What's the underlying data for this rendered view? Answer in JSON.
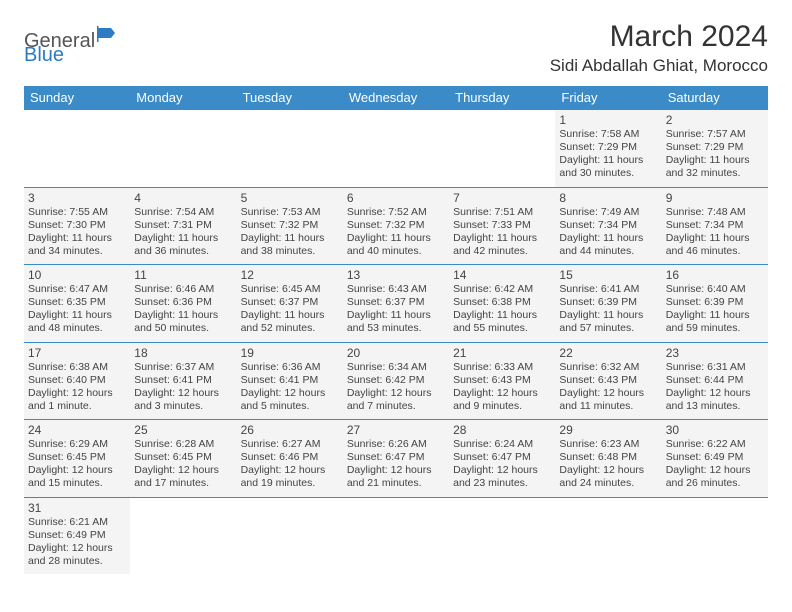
{
  "logo": {
    "text1": "General",
    "text2": "Blue"
  },
  "title": "March 2024",
  "location": "Sidi Abdallah Ghiat, Morocco",
  "colors": {
    "header_bg": "#3b8bc8",
    "header_fg": "#ffffff",
    "cell_bg": "#f4f4f4",
    "border": "#3b8bc8",
    "logo_blue": "#2d7bc0"
  },
  "day_headers": [
    "Sunday",
    "Monday",
    "Tuesday",
    "Wednesday",
    "Thursday",
    "Friday",
    "Saturday"
  ],
  "weeks": [
    [
      null,
      null,
      null,
      null,
      null,
      {
        "n": "1",
        "sr": "Sunrise: 7:58 AM",
        "ss": "Sunset: 7:29 PM",
        "dl": "Daylight: 11 hours and 30 minutes."
      },
      {
        "n": "2",
        "sr": "Sunrise: 7:57 AM",
        "ss": "Sunset: 7:29 PM",
        "dl": "Daylight: 11 hours and 32 minutes."
      }
    ],
    [
      {
        "n": "3",
        "sr": "Sunrise: 7:55 AM",
        "ss": "Sunset: 7:30 PM",
        "dl": "Daylight: 11 hours and 34 minutes."
      },
      {
        "n": "4",
        "sr": "Sunrise: 7:54 AM",
        "ss": "Sunset: 7:31 PM",
        "dl": "Daylight: 11 hours and 36 minutes."
      },
      {
        "n": "5",
        "sr": "Sunrise: 7:53 AM",
        "ss": "Sunset: 7:32 PM",
        "dl": "Daylight: 11 hours and 38 minutes."
      },
      {
        "n": "6",
        "sr": "Sunrise: 7:52 AM",
        "ss": "Sunset: 7:32 PM",
        "dl": "Daylight: 11 hours and 40 minutes."
      },
      {
        "n": "7",
        "sr": "Sunrise: 7:51 AM",
        "ss": "Sunset: 7:33 PM",
        "dl": "Daylight: 11 hours and 42 minutes."
      },
      {
        "n": "8",
        "sr": "Sunrise: 7:49 AM",
        "ss": "Sunset: 7:34 PM",
        "dl": "Daylight: 11 hours and 44 minutes."
      },
      {
        "n": "9",
        "sr": "Sunrise: 7:48 AM",
        "ss": "Sunset: 7:34 PM",
        "dl": "Daylight: 11 hours and 46 minutes."
      }
    ],
    [
      {
        "n": "10",
        "sr": "Sunrise: 6:47 AM",
        "ss": "Sunset: 6:35 PM",
        "dl": "Daylight: 11 hours and 48 minutes."
      },
      {
        "n": "11",
        "sr": "Sunrise: 6:46 AM",
        "ss": "Sunset: 6:36 PM",
        "dl": "Daylight: 11 hours and 50 minutes."
      },
      {
        "n": "12",
        "sr": "Sunrise: 6:45 AM",
        "ss": "Sunset: 6:37 PM",
        "dl": "Daylight: 11 hours and 52 minutes."
      },
      {
        "n": "13",
        "sr": "Sunrise: 6:43 AM",
        "ss": "Sunset: 6:37 PM",
        "dl": "Daylight: 11 hours and 53 minutes."
      },
      {
        "n": "14",
        "sr": "Sunrise: 6:42 AM",
        "ss": "Sunset: 6:38 PM",
        "dl": "Daylight: 11 hours and 55 minutes."
      },
      {
        "n": "15",
        "sr": "Sunrise: 6:41 AM",
        "ss": "Sunset: 6:39 PM",
        "dl": "Daylight: 11 hours and 57 minutes."
      },
      {
        "n": "16",
        "sr": "Sunrise: 6:40 AM",
        "ss": "Sunset: 6:39 PM",
        "dl": "Daylight: 11 hours and 59 minutes."
      }
    ],
    [
      {
        "n": "17",
        "sr": "Sunrise: 6:38 AM",
        "ss": "Sunset: 6:40 PM",
        "dl": "Daylight: 12 hours and 1 minute."
      },
      {
        "n": "18",
        "sr": "Sunrise: 6:37 AM",
        "ss": "Sunset: 6:41 PM",
        "dl": "Daylight: 12 hours and 3 minutes."
      },
      {
        "n": "19",
        "sr": "Sunrise: 6:36 AM",
        "ss": "Sunset: 6:41 PM",
        "dl": "Daylight: 12 hours and 5 minutes."
      },
      {
        "n": "20",
        "sr": "Sunrise: 6:34 AM",
        "ss": "Sunset: 6:42 PM",
        "dl": "Daylight: 12 hours and 7 minutes."
      },
      {
        "n": "21",
        "sr": "Sunrise: 6:33 AM",
        "ss": "Sunset: 6:43 PM",
        "dl": "Daylight: 12 hours and 9 minutes."
      },
      {
        "n": "22",
        "sr": "Sunrise: 6:32 AM",
        "ss": "Sunset: 6:43 PM",
        "dl": "Daylight: 12 hours and 11 minutes."
      },
      {
        "n": "23",
        "sr": "Sunrise: 6:31 AM",
        "ss": "Sunset: 6:44 PM",
        "dl": "Daylight: 12 hours and 13 minutes."
      }
    ],
    [
      {
        "n": "24",
        "sr": "Sunrise: 6:29 AM",
        "ss": "Sunset: 6:45 PM",
        "dl": "Daylight: 12 hours and 15 minutes."
      },
      {
        "n": "25",
        "sr": "Sunrise: 6:28 AM",
        "ss": "Sunset: 6:45 PM",
        "dl": "Daylight: 12 hours and 17 minutes."
      },
      {
        "n": "26",
        "sr": "Sunrise: 6:27 AM",
        "ss": "Sunset: 6:46 PM",
        "dl": "Daylight: 12 hours and 19 minutes."
      },
      {
        "n": "27",
        "sr": "Sunrise: 6:26 AM",
        "ss": "Sunset: 6:47 PM",
        "dl": "Daylight: 12 hours and 21 minutes."
      },
      {
        "n": "28",
        "sr": "Sunrise: 6:24 AM",
        "ss": "Sunset: 6:47 PM",
        "dl": "Daylight: 12 hours and 23 minutes."
      },
      {
        "n": "29",
        "sr": "Sunrise: 6:23 AM",
        "ss": "Sunset: 6:48 PM",
        "dl": "Daylight: 12 hours and 24 minutes."
      },
      {
        "n": "30",
        "sr": "Sunrise: 6:22 AM",
        "ss": "Sunset: 6:49 PM",
        "dl": "Daylight: 12 hours and 26 minutes."
      }
    ],
    [
      {
        "n": "31",
        "sr": "Sunrise: 6:21 AM",
        "ss": "Sunset: 6:49 PM",
        "dl": "Daylight: 12 hours and 28 minutes."
      },
      null,
      null,
      null,
      null,
      null,
      null
    ]
  ]
}
